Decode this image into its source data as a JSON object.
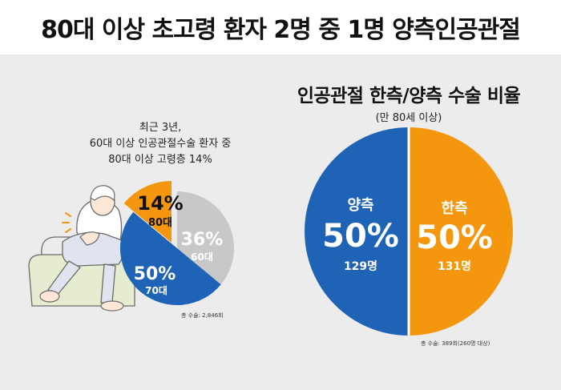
{
  "headline": "80대 이상 초고령 환자 2명 중 1명 양측인공관절",
  "left_chart": {
    "caption": [
      "최근 3년,",
      "60대 이상 인공관절수술 환자 중",
      "80대 이상 고령층 14%"
    ],
    "note": "총 수술: 2,846회"
  },
  "right_chart": {
    "title": "인공관절 한측/양측 수술 비율",
    "subtitle": "(만 80세 이상)",
    "note": "총 수술: 389회(260명 대상)"
  },
  "colors": {
    "blue": "#1e63b5",
    "orange": "#f5960f",
    "gray": "#c8c8c8",
    "panel": "#ececec"
  },
  "chart_data": [
    {
      "type": "pie",
      "title": "",
      "slices": [
        {
          "label": "80대",
          "percent": 14,
          "display": "14%",
          "color": "#f5960f"
        },
        {
          "label": "60대",
          "percent": 36,
          "display": "36%",
          "color": "#c8c8c8"
        },
        {
          "label": "70대",
          "percent": 50,
          "display": "50%",
          "color": "#1e63b5"
        }
      ]
    },
    {
      "type": "pie",
      "title": "인공관절 한측/양측 수술 비율",
      "slices": [
        {
          "label": "한측",
          "percent": 50,
          "display": "50%",
          "count": "131명",
          "color": "#f5960f"
        },
        {
          "label": "양측",
          "percent": 50,
          "display": "50%",
          "count": "129명",
          "color": "#1e63b5"
        }
      ]
    }
  ]
}
